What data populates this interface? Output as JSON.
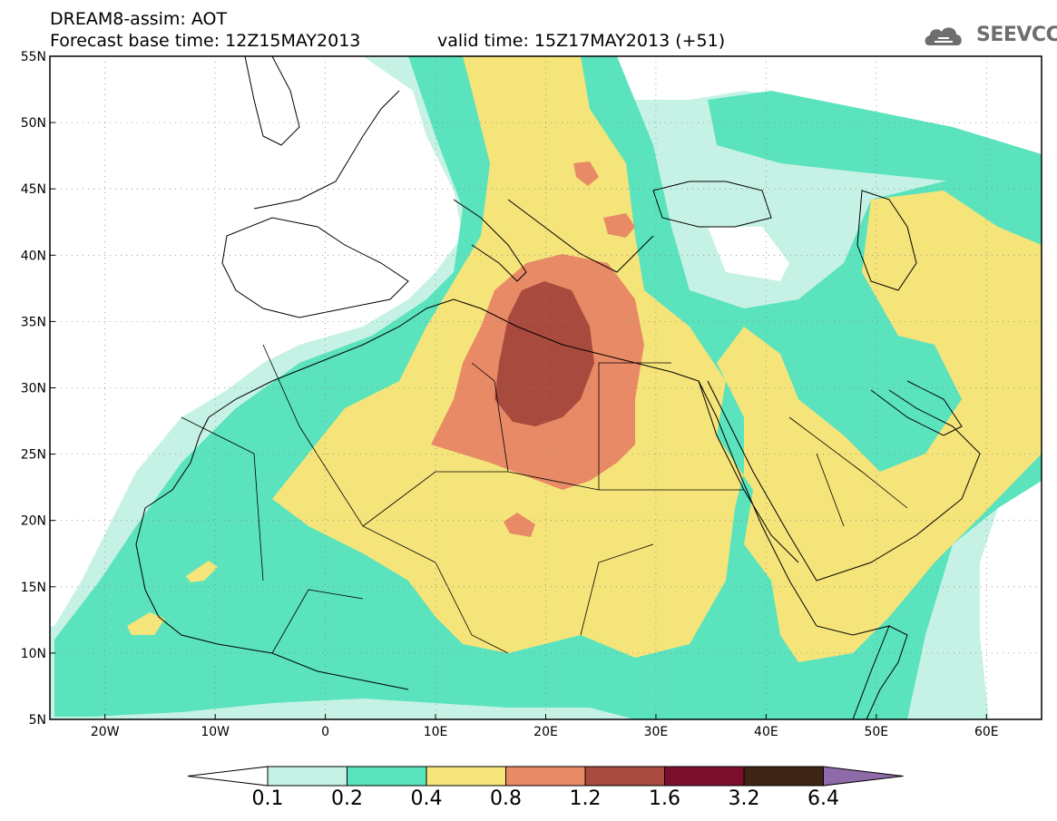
{
  "header": {
    "model_line": "DREAM8-assim: AOT",
    "base_time_line": "Forecast base time: 12Z15MAY2013",
    "valid_time_line": "valid time: 15Z17MAY2013 (+51)",
    "logo_text": "SEEVCCC"
  },
  "map": {
    "lon_range": [
      -25,
      65
    ],
    "lat_range": [
      5,
      55
    ],
    "lon_ticks": [
      {
        "value": -20,
        "label": "20W"
      },
      {
        "value": -10,
        "label": "10W"
      },
      {
        "value": 0,
        "label": "0"
      },
      {
        "value": 10,
        "label": "10E"
      },
      {
        "value": 20,
        "label": "20E"
      },
      {
        "value": 30,
        "label": "30E"
      },
      {
        "value": 40,
        "label": "40E"
      },
      {
        "value": 50,
        "label": "50E"
      },
      {
        "value": 60,
        "label": "60E"
      }
    ],
    "lat_ticks": [
      {
        "value": 55,
        "label": "55N"
      },
      {
        "value": 50,
        "label": "50N"
      },
      {
        "value": 45,
        "label": "45N"
      },
      {
        "value": 40,
        "label": "40N"
      },
      {
        "value": 35,
        "label": "35N"
      },
      {
        "value": 30,
        "label": "30N"
      },
      {
        "value": 25,
        "label": "25N"
      },
      {
        "value": 20,
        "label": "20N"
      },
      {
        "value": 15,
        "label": "15N"
      },
      {
        "value": 10,
        "label": "10N"
      },
      {
        "value": 5,
        "label": "5N"
      }
    ],
    "grid": "dotted"
  },
  "colorbar": {
    "levels": [
      "0.1",
      "0.2",
      "0.4",
      "0.8",
      "1.2",
      "1.6",
      "3.2",
      "6.4"
    ],
    "colors": [
      "#ffffff",
      "#c6f2e6",
      "#5ae3bc",
      "#f5e47a",
      "#e88a66",
      "#a84a3e",
      "#7d0f2e",
      "#3d2414",
      "#8e6ba8"
    ]
  }
}
